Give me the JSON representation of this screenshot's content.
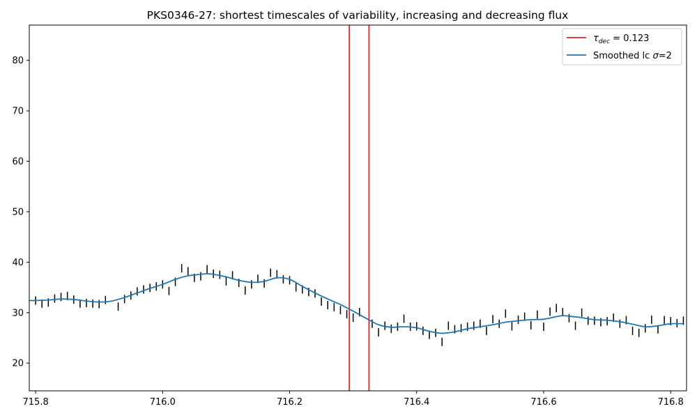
{
  "chart_data": {
    "type": "line",
    "title": "PKS0346-27: shortest timescales of variability, increasing and decreasing flux",
    "xlabel": "",
    "ylabel": "",
    "xlim": [
      715.79,
      716.825
    ],
    "ylim": [
      14.5,
      87
    ],
    "xticks": [
      715.8,
      716.0,
      716.2,
      716.4,
      716.6,
      716.8
    ],
    "xtick_labels": [
      "715.8",
      "716.0",
      "716.2",
      "716.4",
      "716.6",
      "716.8"
    ],
    "yticks": [
      20,
      30,
      40,
      50,
      60,
      70,
      80
    ],
    "ytick_labels": [
      "20",
      "30",
      "40",
      "50",
      "60",
      "70",
      "80"
    ],
    "grid": false,
    "legend_position": "top-right",
    "legend": [
      {
        "series": "tau_dec",
        "label_symbol": "τ",
        "label_sub": "dec",
        "label_suffix": " = 0.123",
        "color": "#d62728"
      },
      {
        "series": "smoothed",
        "label_prefix": "Smoothed lc ",
        "label_sigma": "σ",
        "label_suffix": "=2",
        "color": "#1f77b4"
      }
    ],
    "vlines": {
      "name": "tau_dec",
      "color": "#d62728",
      "x": [
        716.294,
        716.325
      ]
    },
    "errorbar_series": {
      "name": "flux",
      "color": "#000000",
      "x": [
        715.8,
        715.81,
        715.82,
        715.83,
        715.84,
        715.85,
        715.86,
        715.87,
        715.88,
        715.89,
        715.9,
        715.91,
        715.93,
        715.94,
        715.95,
        715.96,
        715.97,
        715.98,
        715.99,
        716.0,
        716.01,
        716.02,
        716.03,
        716.04,
        716.05,
        716.06,
        716.07,
        716.08,
        716.09,
        716.1,
        716.11,
        716.12,
        716.13,
        716.14,
        716.15,
        716.16,
        716.17,
        716.18,
        716.19,
        716.2,
        716.21,
        716.22,
        716.23,
        716.24,
        716.25,
        716.26,
        716.27,
        716.28,
        716.29,
        716.3,
        716.31,
        716.33,
        716.34,
        716.35,
        716.36,
        716.37,
        716.38,
        716.39,
        716.4,
        716.41,
        716.42,
        716.43,
        716.44,
        716.45,
        716.46,
        716.47,
        716.48,
        716.49,
        716.5,
        716.51,
        716.52,
        716.53,
        716.54,
        716.55,
        716.56,
        716.57,
        716.58,
        716.59,
        716.6,
        716.61,
        716.62,
        716.63,
        716.64,
        716.65,
        716.66,
        716.67,
        716.68,
        716.69,
        716.7,
        716.71,
        716.72,
        716.73,
        716.74,
        716.75,
        716.76,
        716.77,
        716.78,
        716.79,
        716.8,
        716.81,
        716.82
      ],
      "y": [
        32.4,
        31.8,
        32.0,
        32.8,
        33.1,
        33.3,
        32.6,
        31.8,
        31.9,
        31.8,
        31.7,
        32.5,
        31.2,
        32.7,
        33.4,
        34.2,
        34.6,
        34.9,
        35.2,
        35.6,
        34.3,
        36.1,
        38.8,
        38.2,
        36.9,
        37.2,
        38.6,
        37.7,
        37.5,
        36.2,
        37.4,
        35.9,
        34.4,
        35.6,
        36.7,
        35.8,
        37.9,
        37.6,
        36.6,
        36.4,
        35.0,
        34.6,
        34.1,
        33.8,
        32.2,
        31.5,
        31.1,
        30.5,
        29.7,
        29.0,
        30.1,
        27.8,
        26.1,
        27.4,
        26.8,
        27.2,
        28.8,
        27.2,
        27.3,
        26.4,
        25.6,
        26.0,
        24.2,
        27.4,
        26.7,
        26.9,
        27.2,
        27.4,
        27.8,
        26.4,
        28.7,
        27.8,
        29.8,
        27.3,
        28.6,
        29.2,
        27.5,
        29.6,
        27.2,
        30.2,
        30.9,
        30.1,
        28.9,
        27.4,
        30.0,
        28.4,
        28.4,
        28.1,
        28.3,
        29.0,
        27.8,
        28.5,
        26.4,
        26.0,
        26.9,
        28.6,
        26.7,
        28.5,
        28.3,
        27.9,
        28.4
      ]
    },
    "smoothed_series": {
      "name": "smoothed",
      "color": "#1f77b4",
      "x": [
        715.79,
        715.8,
        715.82,
        715.84,
        715.86,
        715.88,
        715.9,
        715.92,
        715.94,
        715.96,
        715.98,
        716.0,
        716.02,
        716.04,
        716.06,
        716.07,
        716.08,
        716.1,
        716.12,
        716.14,
        716.16,
        716.18,
        716.2,
        716.22,
        716.24,
        716.26,
        716.28,
        716.3,
        716.32,
        716.34,
        716.36,
        716.38,
        716.4,
        716.42,
        716.44,
        716.46,
        716.48,
        716.5,
        716.52,
        716.54,
        716.56,
        716.58,
        716.6,
        716.62,
        716.63,
        716.64,
        716.66,
        716.68,
        716.7,
        716.72,
        716.74,
        716.76,
        716.78,
        716.8,
        716.82
      ],
      "y": [
        32.4,
        32.4,
        32.5,
        32.7,
        32.6,
        32.3,
        32.1,
        32.3,
        33.0,
        33.9,
        34.8,
        35.6,
        36.6,
        37.3,
        37.6,
        37.7,
        37.6,
        37.1,
        36.4,
        36.0,
        36.2,
        36.9,
        36.6,
        35.2,
        33.9,
        32.7,
        31.6,
        30.3,
        28.9,
        27.6,
        27.1,
        27.2,
        27.0,
        26.3,
        25.9,
        26.2,
        26.8,
        27.2,
        27.6,
        28.1,
        28.4,
        28.6,
        28.7,
        29.2,
        29.4,
        29.3,
        29.0,
        28.6,
        28.5,
        28.2,
        27.7,
        27.2,
        27.4,
        27.8,
        27.8
      ]
    }
  }
}
